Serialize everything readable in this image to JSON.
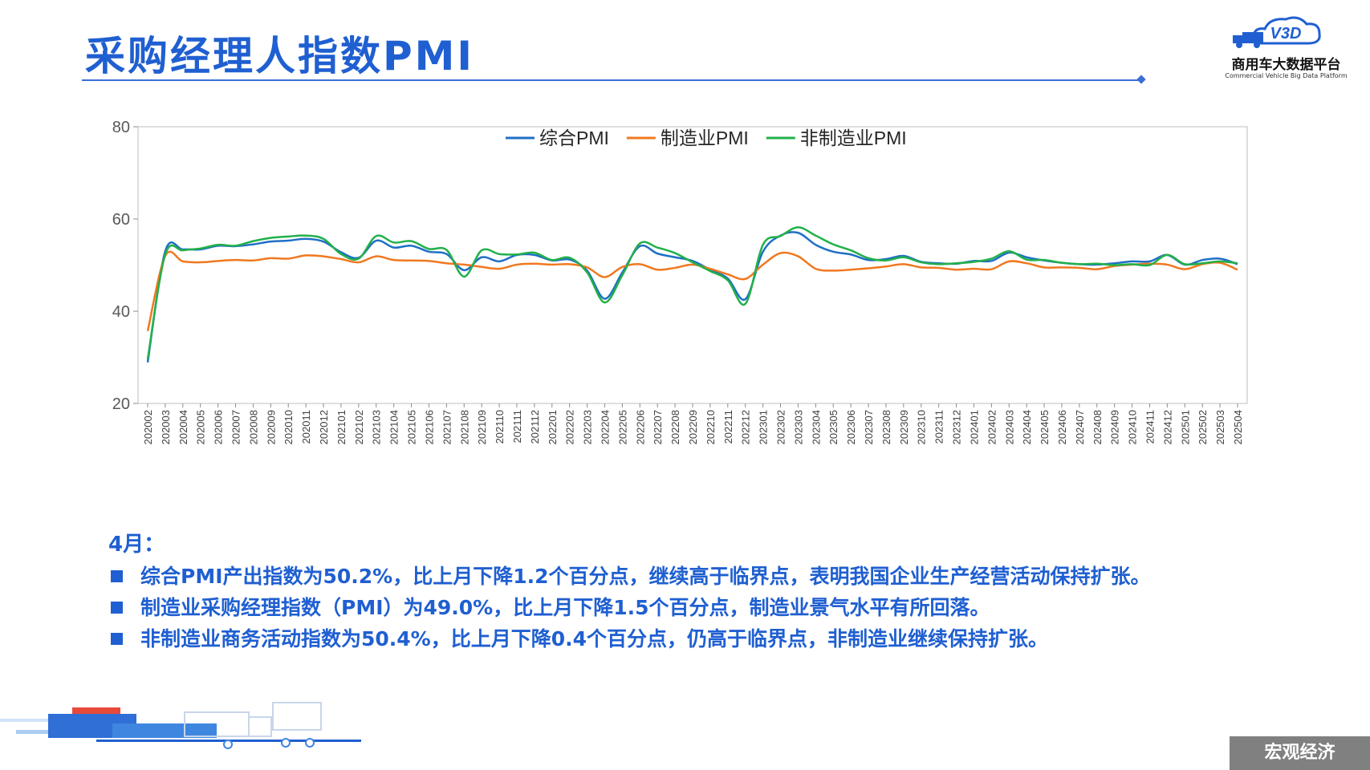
{
  "header": {
    "title": "采购经理人指数PMI",
    "logo_cn": "商用车大数据平台",
    "logo_en": "Commercial Vehicle Big Data Platform",
    "logo_mark": "V3D"
  },
  "chart_data": {
    "type": "line",
    "title": "",
    "xlabel": "",
    "ylabel": "",
    "ylim": [
      20,
      80
    ],
    "yticks": [
      20,
      40,
      60,
      80
    ],
    "grid": false,
    "legend_position": "top-center",
    "categories": [
      "202002",
      "202003",
      "202004",
      "202005",
      "202006",
      "202007",
      "202008",
      "202009",
      "202010",
      "202011",
      "202012",
      "202101",
      "202102",
      "202103",
      "202104",
      "202105",
      "202106",
      "202107",
      "202108",
      "202109",
      "202110",
      "202111",
      "202112",
      "202201",
      "202202",
      "202203",
      "202204",
      "202205",
      "202206",
      "202207",
      "202208",
      "202209",
      "202210",
      "202211",
      "202212",
      "202301",
      "202302",
      "202303",
      "202304",
      "202305",
      "202306",
      "202307",
      "202308",
      "202309",
      "202310",
      "202311",
      "202312",
      "202401",
      "202402",
      "202403",
      "202404",
      "202405",
      "202406",
      "202407",
      "202408",
      "202409",
      "202410",
      "202411",
      "202412",
      "202501",
      "202502",
      "202503",
      "202504"
    ],
    "series": [
      {
        "name": "综合PMI",
        "color": "#1f6fc5",
        "values": [
          28.9,
          53.0,
          53.4,
          53.4,
          54.2,
          54.1,
          54.5,
          55.1,
          55.3,
          55.7,
          55.1,
          52.8,
          51.6,
          55.3,
          53.8,
          54.2,
          52.9,
          52.4,
          48.9,
          51.7,
          50.8,
          52.2,
          52.2,
          51.0,
          51.2,
          48.8,
          42.7,
          48.4,
          54.1,
          52.5,
          51.7,
          50.9,
          49.0,
          47.1,
          42.6,
          52.9,
          56.4,
          57.0,
          54.4,
          52.9,
          52.3,
          51.1,
          51.3,
          52.0,
          50.7,
          50.4,
          50.3,
          50.9,
          50.9,
          52.7,
          51.7,
          51.0,
          50.5,
          50.2,
          50.1,
          50.4,
          50.8,
          50.8,
          52.2,
          50.1,
          51.1,
          51.4,
          50.2
        ]
      },
      {
        "name": "制造业PMI",
        "color": "#f07820",
        "values": [
          35.7,
          52.0,
          50.8,
          50.6,
          50.9,
          51.1,
          51.0,
          51.5,
          51.4,
          52.1,
          51.9,
          51.3,
          50.6,
          51.9,
          51.1,
          51.0,
          50.9,
          50.4,
          50.1,
          49.6,
          49.2,
          50.1,
          50.3,
          50.1,
          50.2,
          49.5,
          47.4,
          49.6,
          50.2,
          49.0,
          49.4,
          50.1,
          49.2,
          48.0,
          47.0,
          50.1,
          52.6,
          51.9,
          49.2,
          48.8,
          49.0,
          49.3,
          49.7,
          50.2,
          49.5,
          49.4,
          49.0,
          49.2,
          49.1,
          50.8,
          50.4,
          49.5,
          49.5,
          49.4,
          49.1,
          49.8,
          50.1,
          50.3,
          50.1,
          49.1,
          50.2,
          50.5,
          49.0
        ]
      },
      {
        "name": "非制造业PMI",
        "color": "#22b04a",
        "values": [
          29.6,
          52.3,
          53.2,
          53.6,
          54.4,
          54.2,
          55.2,
          55.9,
          56.2,
          56.4,
          55.7,
          52.4,
          51.4,
          56.3,
          54.9,
          55.2,
          53.5,
          53.3,
          47.5,
          53.2,
          52.4,
          52.3,
          52.7,
          51.1,
          51.6,
          48.4,
          41.9,
          47.8,
          54.7,
          53.8,
          52.6,
          50.6,
          48.7,
          46.7,
          41.6,
          54.4,
          56.3,
          58.2,
          56.4,
          54.5,
          53.2,
          51.5,
          51.0,
          51.7,
          50.6,
          50.2,
          50.4,
          50.7,
          51.4,
          53.0,
          51.2,
          51.1,
          50.5,
          50.2,
          50.3,
          50.0,
          50.2,
          50.0,
          52.2,
          50.2,
          50.4,
          50.8,
          50.4
        ]
      }
    ]
  },
  "notes": {
    "heading": "4月：",
    "items": [
      "综合PMI产出指数为50.2%，比上月下降1.2个百分点，继续高于临界点，表明我国企业生产经营活动保持扩张。",
      "制造业采购经理指数（PMI）为49.0%，比上月下降1.5个百分点，制造业景气水平有所回落。",
      "非制造业商务活动指数为50.4%，比上月下降0.4个百分点，仍高于临界点，非制造业继续保持扩张。"
    ]
  },
  "footer": {
    "section_tag": "宏观经济"
  }
}
